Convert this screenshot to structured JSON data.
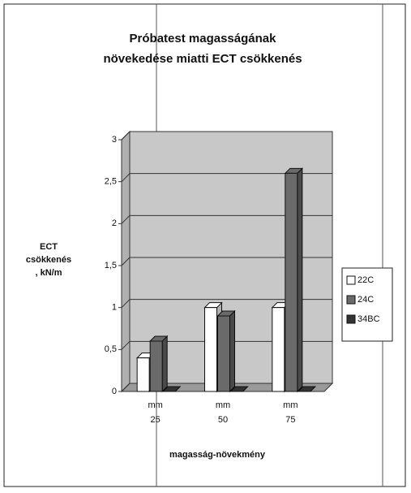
{
  "chart_data": {
    "type": "bar",
    "title": [
      "Próbatest magasságának",
      "növekedése miatti ECT csökkenés"
    ],
    "y_label": [
      "ECT",
      "csökkenés",
      ", kN/m"
    ],
    "x_label": "magasság-növekmény",
    "categories": [
      "mm 25",
      "mm 50",
      "mm 75"
    ],
    "series": [
      {
        "name": "22C",
        "color": "#ffffff",
        "values": [
          0.4,
          1,
          1
        ]
      },
      {
        "name": "24C",
        "color": "#6a6a6a",
        "values": [
          0.6,
          0.9,
          2.6
        ]
      },
      {
        "name": "34BC",
        "color": "#333333",
        "values": [
          0,
          0,
          0
        ]
      }
    ],
    "ylim": [
      0,
      3
    ],
    "yticks": [
      0,
      {
        "value": 0.5,
        "label": "0,5"
      },
      1,
      {
        "value": 1.5,
        "label": "1,5"
      },
      2,
      {
        "value": 2.5,
        "label": "2,5"
      },
      3
    ],
    "grid": true,
    "legend": "right"
  }
}
